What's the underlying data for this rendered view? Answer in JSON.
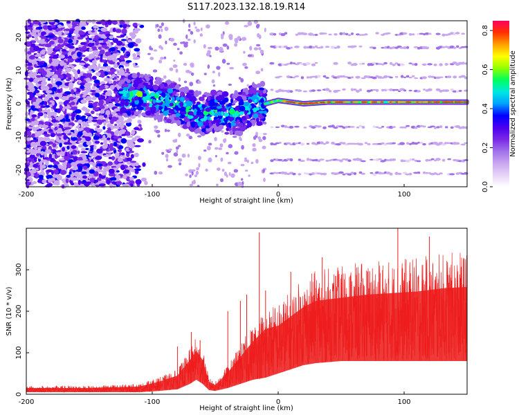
{
  "figure": {
    "title": "S117.2023.132.18.19.R14"
  },
  "colors": {
    "colormap": [
      "#ffffff",
      "#e6d3f7",
      "#c9a6f0",
      "#a070ea",
      "#7a28e8",
      "#4b00f0",
      "#0000ff",
      "#00a0ff",
      "#00e8e0",
      "#00ff60",
      "#90ff00",
      "#ffff00",
      "#ffa000",
      "#ff3000",
      "#ff0060"
    ],
    "snr_line": "#ee1c1c",
    "snr_fill": "#ef3a3a"
  },
  "chart_data": [
    {
      "type": "heatmap",
      "xlabel": "Height of straight line (km)",
      "ylabel": "Frequency (Hz)",
      "colorbar_label": "Normalized spectral amplitude",
      "xlim": [
        -200,
        150
      ],
      "ylim": [
        -25,
        25
      ],
      "clim": [
        0,
        0.85
      ],
      "xticks": [
        -200,
        -100,
        0,
        100
      ],
      "yticks": [
        -20,
        -10,
        0,
        10,
        20
      ],
      "cticks": [
        0.0,
        0.2,
        0.4,
        0.6,
        0.8
      ],
      "signal_trace": [
        [
          -120,
          2
        ],
        [
          -110,
          3
        ],
        [
          -100,
          2
        ],
        [
          -90,
          1
        ],
        [
          -80,
          0
        ],
        [
          -70,
          -2
        ],
        [
          -60,
          -3
        ],
        [
          -50,
          -2
        ],
        [
          -40,
          -3
        ],
        [
          -30,
          -3
        ],
        [
          -20,
          0
        ],
        [
          -10,
          0
        ],
        [
          0,
          1
        ],
        [
          10,
          0.5
        ],
        [
          20,
          0
        ],
        [
          40,
          0.5
        ],
        [
          60,
          0.5
        ],
        [
          80,
          0.5
        ],
        [
          100,
          0.5
        ],
        [
          120,
          0.5
        ],
        [
          150,
          0.5
        ]
      ],
      "harmonic_bands_hz": [
        -21,
        -17,
        -12,
        -7,
        4,
        8,
        12,
        17,
        21
      ]
    },
    {
      "type": "line",
      "xlabel": "Height of straight line (km)",
      "ylabel": "SNR (10 * v/v)",
      "xlim": [
        -200,
        150
      ],
      "ylim": [
        0,
        400
      ],
      "xticks": [
        -200,
        -100,
        0,
        100
      ],
      "yticks": [
        0,
        100,
        200,
        300
      ],
      "envelope": [
        [
          -200,
          5,
          20
        ],
        [
          -150,
          5,
          20
        ],
        [
          -110,
          5,
          25
        ],
        [
          -95,
          8,
          40
        ],
        [
          -80,
          12,
          60
        ],
        [
          -70,
          25,
          110
        ],
        [
          -65,
          35,
          140
        ],
        [
          -60,
          25,
          110
        ],
        [
          -55,
          10,
          40
        ],
        [
          -50,
          8,
          30
        ],
        [
          -40,
          15,
          70
        ],
        [
          -30,
          25,
          120
        ],
        [
          -20,
          35,
          170
        ],
        [
          -10,
          40,
          210
        ],
        [
          0,
          50,
          220
        ],
        [
          10,
          60,
          250
        ],
        [
          20,
          70,
          280
        ],
        [
          30,
          75,
          300
        ],
        [
          50,
          80,
          310
        ],
        [
          70,
          80,
          320
        ],
        [
          90,
          80,
          325
        ],
        [
          110,
          80,
          330
        ],
        [
          130,
          80,
          340
        ],
        [
          150,
          80,
          345
        ]
      ],
      "spikes": [
        [
          -80,
          115
        ],
        [
          -69,
          150
        ],
        [
          -62,
          130
        ],
        [
          -40,
          200
        ],
        [
          -30,
          225
        ],
        [
          -25,
          240
        ],
        [
          -15,
          390
        ],
        [
          -10,
          250
        ],
        [
          10,
          295
        ],
        [
          35,
          330
        ],
        [
          95,
          400
        ],
        [
          120,
          380
        ]
      ]
    }
  ]
}
